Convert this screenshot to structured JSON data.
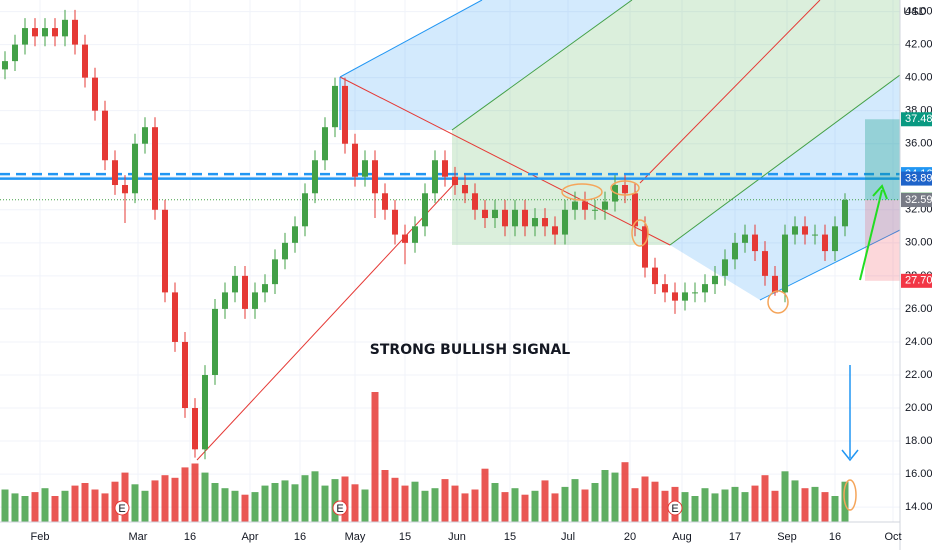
{
  "chart_data": {
    "type": "candlestick",
    "currency": "USD",
    "annotation": "STRONG BULLISH SIGNAL",
    "up_color": "#43a047",
    "down_color": "#e53935",
    "grid": true,
    "ylim": [
      13.1,
      44.7
    ],
    "yticks": [
      {
        "value": 14,
        "label": "14.00"
      },
      {
        "value": 16,
        "label": "16.00"
      },
      {
        "value": 18,
        "label": "18.00"
      },
      {
        "value": 20,
        "label": "20.00"
      },
      {
        "value": 22,
        "label": "22.00"
      },
      {
        "value": 24,
        "label": "24.00"
      },
      {
        "value": 26,
        "label": "26.00"
      },
      {
        "value": 28,
        "label": "28.00"
      },
      {
        "value": 30,
        "label": "30.00"
      },
      {
        "value": 32,
        "label": "32.00"
      },
      {
        "value": 34,
        "label": "34.00"
      },
      {
        "value": 36,
        "label": "36.00"
      },
      {
        "value": 38,
        "label": "38.00"
      },
      {
        "value": 40,
        "label": "40.00"
      },
      {
        "value": 42,
        "label": "42.00"
      },
      {
        "value": 44,
        "label": "44.00"
      }
    ],
    "xlim": [
      -0.5,
      89.5
    ],
    "xticks": [
      {
        "value": 3.5,
        "label": "Feb"
      },
      {
        "value": 13.3,
        "label": "Mar"
      },
      {
        "value": 18.5,
        "label": "16"
      },
      {
        "value": 24.5,
        "label": "Apr"
      },
      {
        "value": 29.5,
        "label": "16"
      },
      {
        "value": 35,
        "label": "May"
      },
      {
        "value": 40,
        "label": "15"
      },
      {
        "value": 45.2,
        "label": "Jun"
      },
      {
        "value": 50.5,
        "label": "15"
      },
      {
        "value": 56.3,
        "label": "Jul"
      },
      {
        "value": 62.5,
        "label": "20"
      },
      {
        "value": 67.7,
        "label": "Aug"
      },
      {
        "value": 73,
        "label": "17"
      },
      {
        "value": 78.2,
        "label": "Sep"
      },
      {
        "value": 83,
        "label": "16"
      },
      {
        "value": 88.8,
        "label": "Oct"
      }
    ],
    "open": [
      40.5,
      41,
      42,
      43,
      42.5,
      43,
      42.5,
      43.5,
      42,
      40,
      38,
      35,
      33.5,
      33,
      36,
      37,
      32,
      27,
      24,
      20,
      17.5,
      22,
      26,
      27,
      28,
      26,
      27,
      27.5,
      29,
      30,
      31,
      33,
      35,
      37,
      39.5,
      36,
      34,
      35,
      33,
      32,
      30.5,
      30,
      31,
      33,
      35,
      34,
      33.5,
      33,
      32,
      31.5,
      32,
      31,
      32,
      31,
      31.5,
      31,
      30.5,
      32,
      32.5,
      32,
      32,
      32.5,
      33.5,
      33,
      31,
      28.5,
      27.5,
      27,
      26.5,
      27,
      27,
      27.5,
      28,
      29,
      30,
      30.5,
      29.5,
      28,
      27,
      30.5,
      31,
      30.5,
      30.5,
      29.5,
      31
    ],
    "high": [
      41.6,
      42.6,
      43.6,
      43.6,
      43.6,
      43.6,
      44.1,
      44.1,
      42.6,
      40.6,
      38.6,
      35.6,
      34.1,
      36.6,
      37.6,
      37.6,
      32.6,
      27.6,
      24.6,
      20.6,
      22.6,
      26.6,
      27.6,
      28.6,
      28.6,
      27.6,
      28.1,
      29.6,
      30.6,
      31.6,
      33.6,
      35.6,
      37.6,
      40,
      40,
      36.6,
      35.6,
      35.6,
      33.6,
      32.6,
      31.1,
      31.6,
      33.6,
      35.6,
      35.6,
      34.6,
      34.1,
      33.6,
      32.6,
      32.6,
      32.6,
      32.6,
      32.6,
      32.1,
      32.1,
      31.6,
      32.6,
      33.1,
      33.1,
      32.6,
      33.1,
      34.1,
      34.1,
      33.6,
      31.6,
      29.1,
      28.1,
      27.6,
      27.6,
      27.6,
      28.1,
      28.6,
      29.6,
      30.6,
      31.1,
      31.1,
      30.1,
      28.6,
      31.1,
      31.6,
      31.6,
      31.1,
      31.1,
      31.6,
      33
    ],
    "low": [
      39.9,
      40.4,
      41.4,
      41.9,
      41.9,
      41.9,
      41.9,
      41.4,
      39.4,
      37.4,
      34.4,
      32.9,
      31.2,
      32.4,
      35.4,
      31.4,
      26.4,
      23.4,
      19.4,
      17,
      16.9,
      21.4,
      25.4,
      26.4,
      25.4,
      25.4,
      26.4,
      26.9,
      28.4,
      29.4,
      30.4,
      32.4,
      34.4,
      36.4,
      35.4,
      33.4,
      33.4,
      31.5,
      31.4,
      29.9,
      28.7,
      29.4,
      30.4,
      32.4,
      33.4,
      32.9,
      32.4,
      31.4,
      30.9,
      30.9,
      30.4,
      30.4,
      30.4,
      30.4,
      30.4,
      29.9,
      29.9,
      31.4,
      31.4,
      31.4,
      31.4,
      31.9,
      32.4,
      30.4,
      27.9,
      26.9,
      26.4,
      25.7,
      25.9,
      26.4,
      26.4,
      26.9,
      27.4,
      28.4,
      29.4,
      28.9,
      27.4,
      26.8,
      26.4,
      29.9,
      29.9,
      29.9,
      28.9,
      28.9,
      30.4
    ],
    "close": [
      41,
      42,
      43,
      42.5,
      43,
      42.5,
      43.5,
      42,
      40,
      38,
      35,
      33.5,
      33,
      36,
      37,
      32,
      27,
      24,
      20,
      17.5,
      22,
      26,
      27,
      28,
      26,
      27,
      27.5,
      29,
      30,
      31,
      33,
      35,
      37,
      39.5,
      36,
      34,
      35,
      33,
      32,
      30.5,
      30,
      31,
      33,
      35,
      34,
      33.5,
      33,
      32,
      31.5,
      32,
      31,
      32,
      31,
      31.5,
      31,
      30.5,
      32,
      32.5,
      32,
      32,
      32.5,
      33.5,
      33,
      31,
      28.5,
      27.5,
      27,
      26.5,
      27,
      27,
      27.5,
      28,
      29,
      30,
      30.5,
      29.5,
      28,
      27,
      30.5,
      31,
      30.5,
      30.5,
      29.5,
      31,
      32.6
    ],
    "volume": [
      2.5,
      2.2,
      2,
      2.3,
      2.6,
      2,
      2.4,
      2.8,
      3,
      2.5,
      2.2,
      3.1,
      3.8,
      2.9,
      2.4,
      3.2,
      3.6,
      3.4,
      4.2,
      4.5,
      3.8,
      3,
      2.6,
      2.4,
      2.1,
      2.3,
      2.8,
      3,
      3.2,
      2.9,
      3.6,
      3.9,
      2.8,
      3.3,
      3.5,
      2.9,
      2.5,
      10,
      4,
      3.4,
      2.8,
      3.1,
      2.4,
      2.6,
      3.3,
      2.8,
      2.2,
      2.5,
      4.1,
      3,
      2.3,
      2.6,
      2.1,
      2.4,
      3.2,
      2.2,
      2.7,
      3.3,
      2.5,
      3,
      4,
      3.8,
      4.6,
      2.6,
      3.5,
      3.1,
      2.4,
      2.7,
      2.3,
      2,
      2.6,
      2.2,
      2.5,
      2.7,
      2.3,
      2.8,
      3.6,
      2.4,
      3.9,
      3.2,
      2.6,
      2.7,
      2.3,
      2,
      3.1
    ],
    "events": [
      {
        "label": "E",
        "x": 11.7
      },
      {
        "label": "E",
        "x": 33.5
      },
      {
        "label": "E",
        "x": 67
      }
    ],
    "price_labels": [
      {
        "value": 37.48,
        "label": "37.48",
        "color": "#089981"
      },
      {
        "value": 34.16,
        "label": "34.16",
        "color": "#2196f3"
      },
      {
        "value": 33.89,
        "label": "33.89",
        "color": "#1e63c9"
      },
      {
        "value": 32.61,
        "label": "32.61",
        "color": "#1b8a2b"
      },
      {
        "value": 32.59,
        "label": "32.59",
        "color": "#787b86"
      },
      {
        "value": 27.7,
        "label": "27.70",
        "color": "#f23645"
      }
    ],
    "hlines": [
      {
        "value": 34.16,
        "style": "dashed",
        "color": "#2196f3"
      },
      {
        "value": 33.89,
        "style": "solid",
        "color": "#2196f3"
      },
      {
        "value": 32.61,
        "style": "dotted",
        "color": "#43a047"
      }
    ]
  }
}
